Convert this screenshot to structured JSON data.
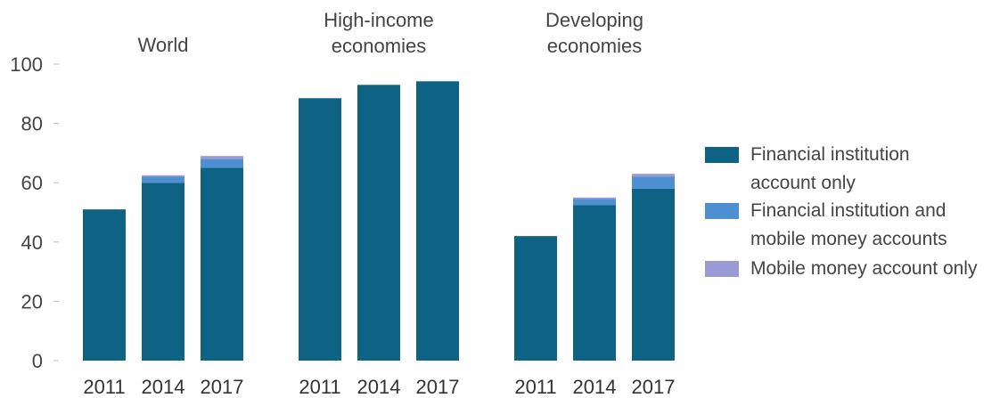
{
  "chart_data": {
    "type": "bar",
    "stacked": true,
    "ylim": [
      0,
      100
    ],
    "yticks": [
      0,
      20,
      40,
      60,
      80,
      100
    ],
    "grid": false,
    "legend_position": "right",
    "groups": [
      {
        "title_lines": [
          "World"
        ],
        "categories": [
          "2011",
          "2014",
          "2017"
        ],
        "values": {
          "fi_only": [
            51,
            60,
            65
          ],
          "fi_and_mm": [
            0,
            2,
            3
          ],
          "mm_only": [
            0,
            0.5,
            1
          ]
        }
      },
      {
        "title_lines": [
          "High-income",
          "economies"
        ],
        "categories": [
          "2011",
          "2014",
          "2017"
        ],
        "values": {
          "fi_only": [
            88.5,
            93,
            94
          ],
          "fi_and_mm": [
            0,
            0,
            0.3
          ],
          "mm_only": [
            0,
            0,
            0
          ]
        }
      },
      {
        "title_lines": [
          "Developing",
          "economies"
        ],
        "categories": [
          "2011",
          "2014",
          "2017"
        ],
        "values": {
          "fi_only": [
            42,
            52.5,
            58
          ],
          "fi_and_mm": [
            0,
            2,
            4
          ],
          "mm_only": [
            0,
            0.5,
            1
          ]
        }
      }
    ],
    "series": [
      {
        "key": "fi_only",
        "name_lines": [
          "Financial institution",
          "account only"
        ],
        "color": "#0e6385"
      },
      {
        "key": "fi_and_mm",
        "name_lines": [
          "Financial institution and",
          "mobile money accounts"
        ],
        "color": "#4d8fd0"
      },
      {
        "key": "mm_only",
        "name_lines": [
          "Mobile money account only"
        ],
        "color": "#9a9ad6"
      }
    ]
  }
}
